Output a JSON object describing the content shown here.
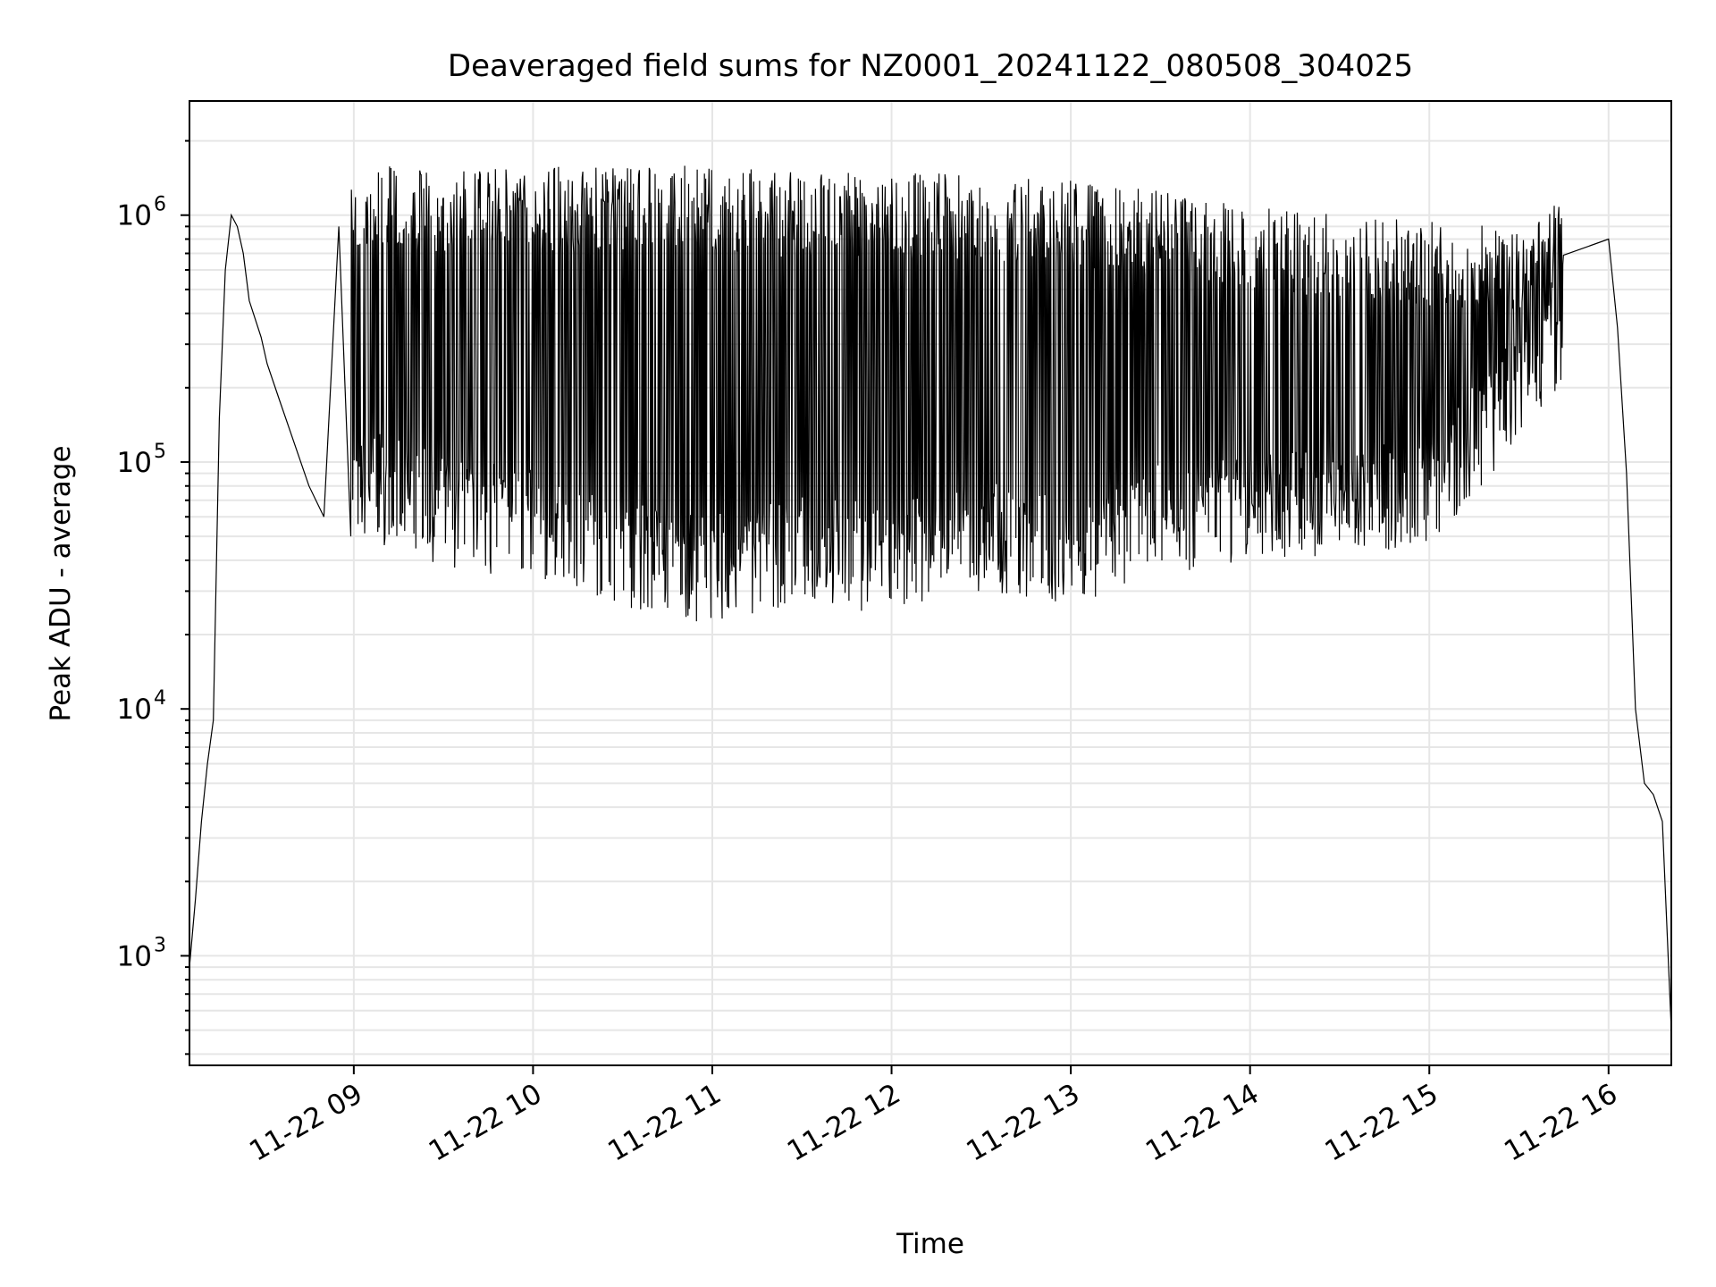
{
  "chart_data": {
    "type": "line",
    "title": "Deaveraged field sums for NZ0001_20241122_080508_304025",
    "xlabel": "Time",
    "ylabel": "Peak ADU - average",
    "yscale": "log",
    "xlim": [
      "2024-11-22 08:05",
      "2024-11-22 16:21"
    ],
    "ylim": [
      360,
      2900000
    ],
    "grid": true,
    "x_ticks": [
      "2024-11-22 09:00",
      "2024-11-22 10:00",
      "2024-11-22 11:00",
      "2024-11-22 12:00",
      "2024-11-22 13:00",
      "2024-11-22 14:00",
      "2024-11-22 15:00",
      "2024-11-22 16:00"
    ],
    "x_tick_labels": [
      "11-22 09",
      "11-22 10",
      "11-22 11",
      "11-22 12",
      "11-22 13",
      "11-22 14",
      "11-22 15",
      "11-22 16"
    ],
    "y_ticks": [
      1000,
      10000,
      100000,
      1000000
    ],
    "y_tick_labels": [
      {
        "base": "10",
        "exp": "3"
      },
      {
        "base": "10",
        "exp": "4"
      },
      {
        "base": "10",
        "exp": "5"
      },
      {
        "base": "10",
        "exp": "6"
      }
    ],
    "series_color": "#000000",
    "grid_color": "#e6e6e6",
    "series": [
      {
        "x": [
          "2024-11-22 08:05",
          "2024-11-22 08:07",
          "2024-11-22 08:09",
          "2024-11-22 08:11",
          "2024-11-22 08:13",
          "2024-11-22 08:15",
          "2024-11-22 08:17",
          "2024-11-22 08:19",
          "2024-11-22 08:21",
          "2024-11-22 08:23",
          "2024-11-22 08:25",
          "2024-11-22 08:27",
          "2024-11-22 08:29",
          "2024-11-22 08:31",
          "2024-11-22 08:35",
          "2024-11-22 08:40",
          "2024-11-22 08:45",
          "2024-11-22 08:50",
          "2024-11-22 08:55",
          "2024-11-22 09:00",
          "2024-11-22 09:30",
          "2024-11-22 10:00",
          "2024-11-22 10:30",
          "2024-11-22 11:00",
          "2024-11-22 11:30",
          "2024-11-22 12:00",
          "2024-11-22 12:30",
          "2024-11-22 13:00",
          "2024-11-22 13:30",
          "2024-11-22 14:00",
          "2024-11-22 14:30",
          "2024-11-22 15:00",
          "2024-11-22 15:30",
          "2024-11-22 15:45",
          "2024-11-22 16:00",
          "2024-11-22 16:03",
          "2024-11-22 16:06",
          "2024-11-22 16:09",
          "2024-11-22 16:12",
          "2024-11-22 16:15",
          "2024-11-22 16:18",
          "2024-11-22 16:21"
        ],
        "y": [
          900,
          1700,
          3500,
          6000,
          9000,
          150000,
          600000,
          1000000,
          900000,
          700000,
          450000,
          380000,
          320000,
          250000,
          180000,
          120000,
          80000,
          60000,
          900000,
          60000,
          40000,
          1500000,
          35000,
          1500000,
          30000,
          1400000,
          28000,
          1300000,
          35000,
          1000000,
          45000,
          900000,
          80000,
          500000,
          800000,
          350000,
          90000,
          10000,
          5000,
          4500,
          3500,
          500
        ],
        "y_low": [
          null,
          null,
          null,
          null,
          null,
          null,
          null,
          null,
          null,
          null,
          null,
          null,
          null,
          null,
          null,
          null,
          null,
          null,
          null,
          50000,
          38000,
          33000,
          26000,
          22000,
          27000,
          24000,
          30000,
          26000,
          35000,
          38000,
          42000,
          45000,
          120000,
          200000,
          null,
          null,
          null,
          null,
          null,
          null,
          null,
          null
        ],
        "y_high": [
          null,
          null,
          null,
          null,
          null,
          null,
          null,
          null,
          null,
          null,
          null,
          null,
          null,
          null,
          null,
          null,
          null,
          null,
          null,
          1600000,
          1550000,
          1600000,
          1550000,
          1600000,
          1500000,
          1500000,
          1450000,
          1400000,
          1250000,
          1100000,
          1000000,
          950000,
          900000,
          1200000,
          null,
          null,
          null,
          null,
          null,
          null,
          null,
          null
        ]
      }
    ]
  }
}
